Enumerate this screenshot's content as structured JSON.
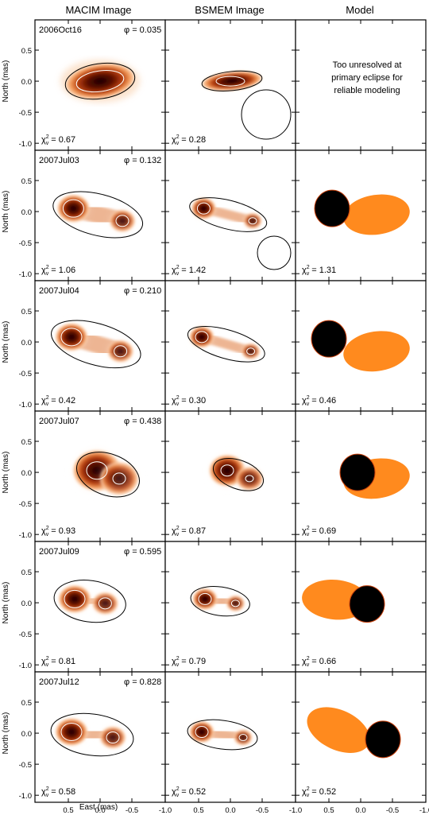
{
  "columns": [
    "MACIM Image",
    "BSMEM Image",
    "Model"
  ],
  "y_axis_label": "North (mas)",
  "x_axis_label": "East (mas)",
  "y_ticks": [
    "0.5",
    "0.0",
    "-0.5",
    "-1.0"
  ],
  "x_ticks": [
    "0.5",
    "0.0",
    "-0.5",
    "-1.0"
  ],
  "chi_symbol": "χ",
  "phi_symbol": "φ",
  "unresolved_text": [
    "Too unresolved at",
    "primary eclipse for",
    "reliable modeling"
  ],
  "colors": {
    "image_dark": "#1a0000",
    "image_mid": "#a8320a",
    "image_light": "#f5a060",
    "model_primary": "#000000",
    "model_secondary": "#ff8a1e"
  },
  "rows": [
    {
      "date": "2006Oct16",
      "phase": "0.035",
      "chi": [
        "0.67",
        "0.28",
        ""
      ],
      "beam": true,
      "model": false
    },
    {
      "date": "2007Jul03",
      "phase": "0.132",
      "chi": [
        "1.06",
        "1.42",
        "1.31"
      ],
      "beam": true,
      "model": true
    },
    {
      "date": "2007Jul04",
      "phase": "0.210",
      "chi": [
        "0.42",
        "0.30",
        "0.46"
      ],
      "beam": false,
      "model": true
    },
    {
      "date": "2007Jul07",
      "phase": "0.438",
      "chi": [
        "0.93",
        "0.87",
        "0.69"
      ],
      "beam": false,
      "model": true
    },
    {
      "date": "2007Jul09",
      "phase": "0.595",
      "chi": [
        "0.81",
        "0.79",
        "0.66"
      ],
      "beam": false,
      "model": true
    },
    {
      "date": "2007Jul12",
      "phase": "0.828",
      "chi": [
        "0.58",
        "0.52",
        "0.52"
      ],
      "beam": false,
      "model": true
    }
  ]
}
